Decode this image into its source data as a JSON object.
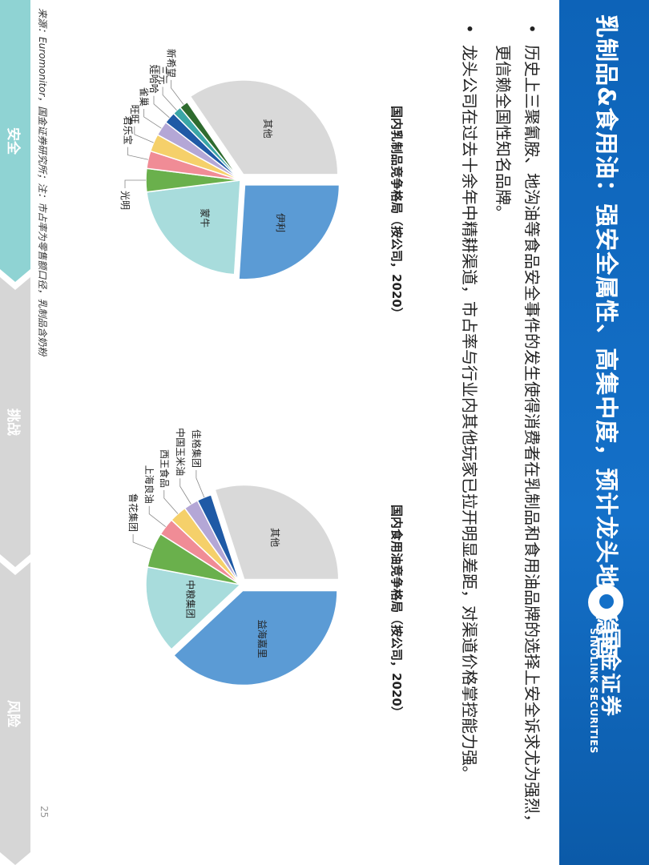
{
  "header": {
    "title": "乳制品&食用油：强安全属性、高集中度，预计龙头地位稳固",
    "logo_cn": "国金证券",
    "logo_en": "SINOLINK SECURITIES",
    "bg_color": "#1470c8"
  },
  "bullets": [
    "历史上三聚氰胺、地沟油等食品安全事件的发生使得消费者在乳制品和食用油品牌的选择上安全诉求尤为强烈，更信赖全国性知名品牌。",
    "龙头公司在过去十余年中精耕渠道，市占率与行业内其他玩家已拉开明显差距，对渠道价格掌控能力强。"
  ],
  "chart_data": [
    {
      "type": "pie",
      "title": "国内乳制品竞争格局（按公司，2020）",
      "start_angle_deg": 0,
      "categories": [
        "伊利",
        "蒙牛",
        "光明",
        "君乐宝",
        "旺旺",
        "雀巢",
        "娃哈哈",
        "三元",
        "新希望",
        "其他"
      ],
      "values": [
        26,
        22,
        4,
        3,
        3,
        2.5,
        2,
        1.5,
        1.5,
        34.5
      ],
      "colors": [
        "#5b9bd5",
        "#a8dcdc",
        "#6ab04c",
        "#f08c96",
        "#f5d06a",
        "#b4a7d6",
        "#1f5aa6",
        "#3aa6a6",
        "#2e6b2e",
        "#d9d9d9"
      ],
      "exploded": [
        "伊利",
        "其他"
      ],
      "inside_labels": [
        "伊利",
        "蒙牛",
        "其他"
      ]
    },
    {
      "type": "pie",
      "title": "国内食用油竞争格局（按公司，2020）",
      "start_angle_deg": 0,
      "categories": [
        "益海嘉里",
        "中粮集团",
        "鲁花集团",
        "上海良油",
        "西王食品",
        "中国玉米油",
        "佳格集团",
        "其他"
      ],
      "values": [
        38,
        15,
        6,
        3,
        3,
        2.5,
        2.5,
        30
      ],
      "colors": [
        "#5b9bd5",
        "#a8dcdc",
        "#6ab04c",
        "#f08c96",
        "#f5d06a",
        "#b4a7d6",
        "#1f5aa6",
        "#d9d9d9"
      ],
      "exploded": [
        "益海嘉里",
        "其他"
      ],
      "inside_labels": [
        "益海嘉里",
        "中粮集团",
        "其他"
      ]
    }
  ],
  "footer": {
    "source": "来源：Euromonitor，国金证券研究所；注：市占率为零售额口径，乳制品含奶粉",
    "page_number": "25",
    "nav": [
      "安全",
      "挑战",
      "风险"
    ],
    "nav_active_color": "#8fd3d3",
    "nav_inactive_color": "#d6d6d6"
  }
}
